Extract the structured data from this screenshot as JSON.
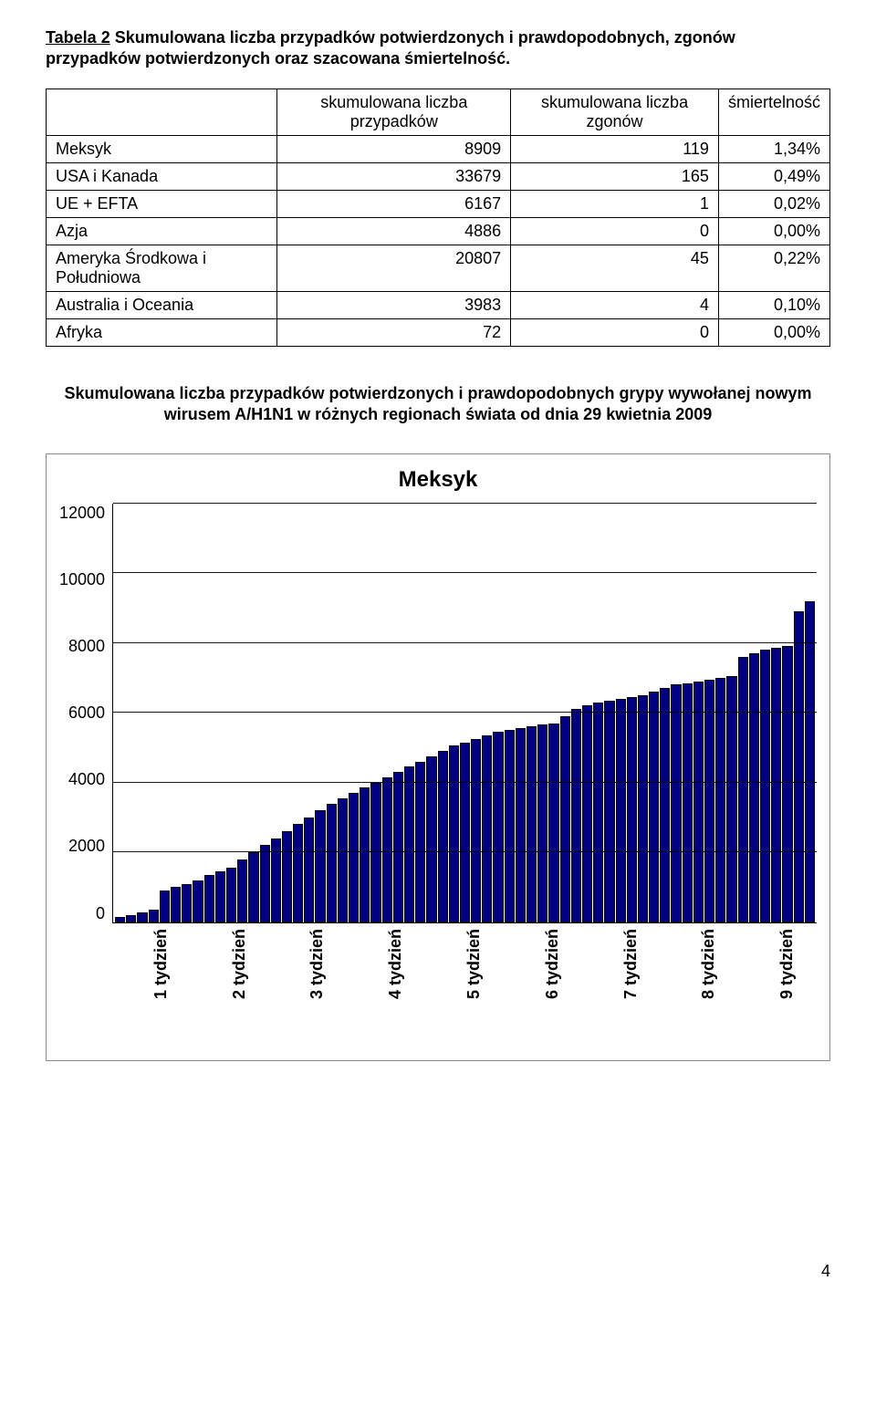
{
  "title": {
    "prefix": "Tabela 2",
    "rest": " Skumulowana liczba przypadków potwierdzonych i prawdopodobnych, zgonów przypadków potwierdzonych oraz szacowana śmiertelność."
  },
  "table": {
    "headers": [
      "",
      "skumulowana liczba przypadków",
      "skumulowana liczba zgonów",
      "śmiertelność"
    ],
    "rows": [
      {
        "label": "Meksyk",
        "cases": "8909",
        "deaths": "119",
        "mortality": "1,34%"
      },
      {
        "label": "USA i Kanada",
        "cases": "33679",
        "deaths": "165",
        "mortality": "0,49%"
      },
      {
        "label": "UE + EFTA",
        "cases": "6167",
        "deaths": "1",
        "mortality": "0,02%"
      },
      {
        "label": "Azja",
        "cases": "4886",
        "deaths": "0",
        "mortality": "0,00%"
      },
      {
        "label": "Ameryka Środkowa i Południowa",
        "cases": "20807",
        "deaths": "45",
        "mortality": "0,22%"
      },
      {
        "label": "Australia i Oceania",
        "cases": "3983",
        "deaths": "4",
        "mortality": "0,10%"
      },
      {
        "label": "Afryka",
        "cases": "72",
        "deaths": "0",
        "mortality": "0,00%"
      }
    ]
  },
  "subtitle": "Skumulowana liczba przypadków potwierdzonych i prawdopodobnych grypy wywołanej nowym wirusem A/H1N1 w różnych regionach świata od dnia 29 kwietnia 2009",
  "chart": {
    "title": "Meksyk",
    "type": "bar",
    "y_max": 12000,
    "y_ticks": [
      12000,
      10000,
      8000,
      6000,
      4000,
      2000,
      0
    ],
    "gridline_values": [
      2000,
      4000,
      6000,
      8000,
      10000,
      12000
    ],
    "bar_color": "#000080",
    "bar_border": "#000000",
    "background_color": "#ffffff",
    "grid_color": "#000000",
    "title_fontsize": 24,
    "axis_fontsize": 18,
    "values": [
      150,
      200,
      280,
      360,
      900,
      1000,
      1100,
      1200,
      1350,
      1450,
      1550,
      1800,
      2000,
      2200,
      2400,
      2600,
      2800,
      3000,
      3200,
      3400,
      3550,
      3700,
      3850,
      4000,
      4150,
      4300,
      4450,
      4600,
      4750,
      4900,
      5050,
      5150,
      5250,
      5350,
      5450,
      5500,
      5550,
      5600,
      5650,
      5700,
      5900,
      6100,
      6200,
      6300,
      6350,
      6400,
      6450,
      6500,
      6600,
      6700,
      6800,
      6850,
      6900,
      6950,
      7000,
      7050,
      7600,
      7700,
      7800,
      7850,
      7900,
      8909,
      9200
    ],
    "x_labels": [
      "1 tydzień",
      "2 tydzień",
      "3 tydzień",
      "4 tydzień",
      "5 tydzień",
      "6 tydzień",
      "7 tydzień",
      "8 tydzień",
      "9 tydzień"
    ]
  },
  "page_number": "4"
}
